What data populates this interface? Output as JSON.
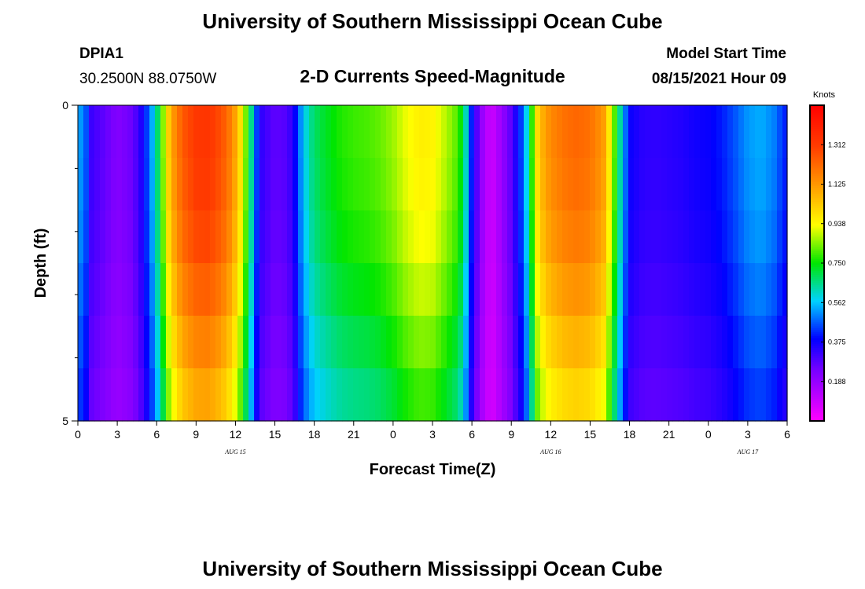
{
  "header": {
    "title": "University of Southern Mississippi Ocean Cube",
    "station_name": "DPIA1",
    "station_coords": "30.2500N  88.0750W",
    "subtitle": "2-D Currents Speed-Magnitude",
    "model_start_label": "Model Start Time",
    "model_start_value": "08/15/2021 Hour 09"
  },
  "footer": {
    "title": "University of Southern Mississippi Ocean Cube"
  },
  "chart_data": {
    "type": "heatmap",
    "title": "2-D Currents Speed-Magnitude",
    "xlabel": "Forecast Time(Z)",
    "ylabel": "Depth (ft)",
    "x_hours_from_start": [
      0,
      54
    ],
    "x_tick_labels": [
      "0",
      "3",
      "6",
      "9",
      "12",
      "15",
      "18",
      "21",
      "0",
      "3",
      "6",
      "9",
      "12",
      "15",
      "18",
      "21",
      "0",
      "3",
      "6"
    ],
    "x_date_labels": [
      {
        "label": "AUG 15",
        "hour": 12
      },
      {
        "label": "AUG 16",
        "hour": 36
      },
      {
        "label": "AUG 17",
        "hour": 51
      }
    ],
    "y_tick_labels": [
      "0",
      "5"
    ],
    "ylim": [
      0,
      5
    ],
    "depth_layers": 6,
    "colorbar": {
      "units": "Knots",
      "range": [
        0,
        1.5
      ],
      "tick_labels": [
        "0.188",
        "0.375",
        "0.562",
        "0.750",
        "0.938",
        "1.125",
        "1.312"
      ],
      "tick_values": [
        0.1875,
        0.375,
        0.5625,
        0.75,
        0.9375,
        1.125,
        1.3125
      ]
    },
    "profile_hours": [
      0,
      0.7,
      1,
      3,
      4.2,
      5,
      5.9,
      6.5,
      6.9,
      7.4,
      8,
      9,
      10,
      11,
      11.8,
      12.5,
      13.1,
      13.6,
      14,
      15,
      16,
      16.6,
      17.1,
      17.6,
      18,
      19,
      20,
      21,
      22,
      23,
      24,
      25,
      26,
      27,
      28,
      29,
      29.6,
      30,
      30.5,
      31,
      31.4,
      31.8,
      32,
      33,
      34,
      34.6,
      35,
      35.5,
      36,
      37,
      38,
      39,
      40,
      40.5,
      41,
      41.5,
      42,
      43,
      44,
      45,
      46,
      47,
      48,
      49,
      50,
      51,
      52,
      53,
      54
    ],
    "speed_profile_knots": [
      0.55,
      0.45,
      0.32,
      0.22,
      0.26,
      0.38,
      0.6,
      0.85,
      1.02,
      1.15,
      1.25,
      1.32,
      1.33,
      1.26,
      1.15,
      0.95,
      0.7,
      0.45,
      0.33,
      0.27,
      0.29,
      0.4,
      0.55,
      0.63,
      0.68,
      0.73,
      0.77,
      0.79,
      0.8,
      0.82,
      0.86,
      0.92,
      0.96,
      0.95,
      0.88,
      0.8,
      0.6,
      0.4,
      0.25,
      0.14,
      0.1,
      0.11,
      0.15,
      0.28,
      0.5,
      0.8,
      1.0,
      1.1,
      1.15,
      1.2,
      1.22,
      1.2,
      1.12,
      0.95,
      0.75,
      0.55,
      0.38,
      0.34,
      0.33,
      0.34,
      0.35,
      0.37,
      0.38,
      0.41,
      0.46,
      0.52,
      0.54,
      0.5,
      0.4
    ],
    "layer_scale": [
      1.0,
      0.99,
      0.97,
      0.93,
      0.88,
      0.83
    ]
  }
}
